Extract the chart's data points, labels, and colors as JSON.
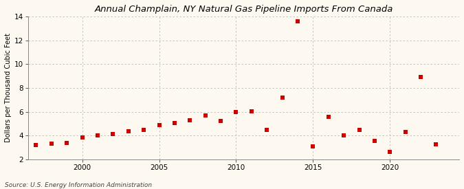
{
  "title": "Annual Champlain, NY Natural Gas Pipeline Imports From Canada",
  "ylabel": "Dollars per Thousand Cubic Feet",
  "source": "Source: U.S. Energy Information Administration",
  "background_color": "#fef9f0",
  "plot_bg_color": "#fef9f0",
  "marker_color": "#cc0000",
  "years": [
    1997,
    1998,
    1999,
    2000,
    2001,
    2002,
    2003,
    2004,
    2005,
    2006,
    2007,
    2008,
    2009,
    2010,
    2011,
    2012,
    2013,
    2014,
    2015,
    2016,
    2017,
    2018,
    2019,
    2020,
    2021,
    2022,
    2023
  ],
  "values": [
    3.2,
    3.3,
    3.35,
    3.85,
    4.0,
    4.15,
    4.35,
    4.5,
    4.85,
    5.05,
    5.3,
    5.7,
    5.25,
    6.0,
    6.05,
    4.5,
    7.2,
    13.6,
    3.1,
    5.55,
    4.0,
    4.5,
    3.55,
    2.6,
    4.3,
    8.9,
    3.25
  ],
  "ylim": [
    2,
    14
  ],
  "yticks": [
    2,
    4,
    6,
    8,
    10,
    12,
    14
  ],
  "xlim": [
    1996.5,
    2024.5
  ],
  "xticks": [
    2000,
    2005,
    2010,
    2015,
    2020
  ],
  "grid_color": "#bbbbbb",
  "marker_size": 18,
  "title_fontsize": 9.5,
  "ylabel_fontsize": 7,
  "tick_fontsize": 7.5,
  "source_fontsize": 6.5
}
